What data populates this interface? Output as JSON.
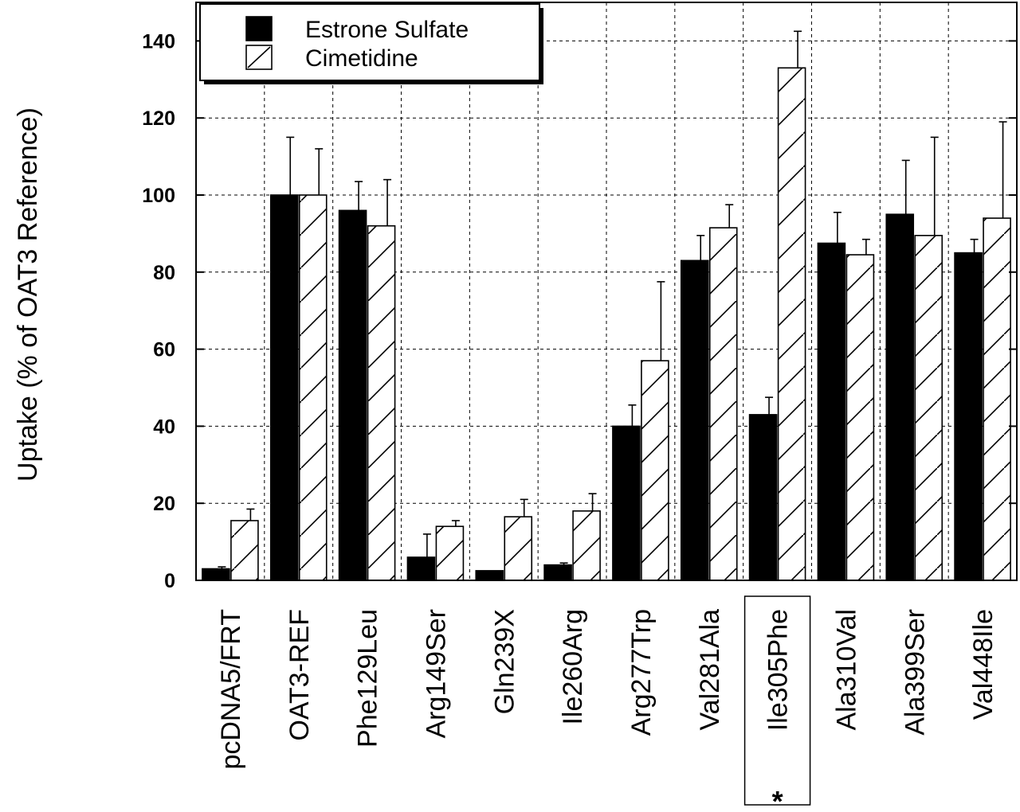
{
  "chart_data": {
    "type": "bar",
    "title": "",
    "xlabel": "",
    "ylabel": "Uptake (% of OAT3 Reference)",
    "ylim": [
      0,
      150
    ],
    "yticks": [
      0,
      20,
      40,
      60,
      80,
      100,
      120,
      140
    ],
    "grid": true,
    "legend_position": "top-left",
    "categories": [
      "pcDNA5/FRT",
      "OAT3-REF",
      "Phe129Leu",
      "Arg149Ser",
      "Gln239X",
      "Ile260Arg",
      "Arg277Trp",
      "Val281Ala",
      "Ile305Phe",
      "Ala310Val",
      "Ala399Ser",
      "Val448Ile"
    ],
    "highlighted_category": "Ile305Phe",
    "highlight_marker": "*",
    "series": [
      {
        "name": "Estrone Sulfate",
        "fill": "#000000",
        "pattern": "solid",
        "values": [
          3,
          100,
          96,
          6,
          2.5,
          4,
          40,
          83,
          43,
          87.5,
          95,
          85
        ],
        "errors": [
          0.5,
          15,
          7.5,
          6,
          0,
          0.5,
          5.5,
          6.5,
          4.5,
          8,
          14,
          3.5
        ]
      },
      {
        "name": "Cimetidine",
        "fill": "#ffffff",
        "pattern": "diagonal-hatch",
        "values": [
          15.5,
          100,
          92,
          14,
          16.5,
          18,
          57,
          91.5,
          133,
          84.5,
          89.5,
          94
        ],
        "errors": [
          3,
          12,
          12,
          1.5,
          4.5,
          4.5,
          20.5,
          6,
          9.5,
          4,
          25.5,
          25
        ]
      }
    ]
  }
}
